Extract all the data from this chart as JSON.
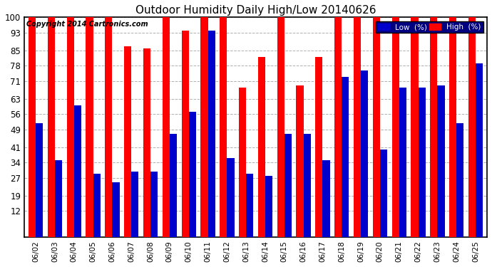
{
  "title": "Outdoor Humidity Daily High/Low 20140626",
  "copyright": "Copyright 2014 Cartronics.com",
  "dates": [
    "06/02",
    "06/03",
    "06/04",
    "06/05",
    "06/06",
    "06/07",
    "06/08",
    "06/09",
    "06/10",
    "06/11",
    "06/12",
    "06/13",
    "06/14",
    "06/15",
    "06/16",
    "06/17",
    "06/18",
    "06/19",
    "06/20",
    "06/21",
    "06/22",
    "06/23",
    "06/24",
    "06/25"
  ],
  "high": [
    100,
    100,
    100,
    100,
    100,
    87,
    86,
    100,
    94,
    100,
    100,
    68,
    82,
    100,
    69,
    82,
    100,
    100,
    100,
    100,
    100,
    100,
    100,
    100
  ],
  "low": [
    52,
    35,
    60,
    29,
    25,
    30,
    30,
    47,
    57,
    94,
    36,
    29,
    28,
    47,
    47,
    35,
    73,
    76,
    40,
    68,
    68,
    69,
    52,
    79
  ],
  "high_color": "#ff0000",
  "low_color": "#0000cc",
  "bg_color": "#ffffff",
  "grid_color": "#b0b0b0",
  "title_color": "#000000",
  "yticks": [
    12,
    19,
    27,
    34,
    41,
    49,
    56,
    63,
    71,
    78,
    85,
    93,
    100
  ],
  "ymin": 12,
  "ymax": 100,
  "bar_width": 0.38
}
